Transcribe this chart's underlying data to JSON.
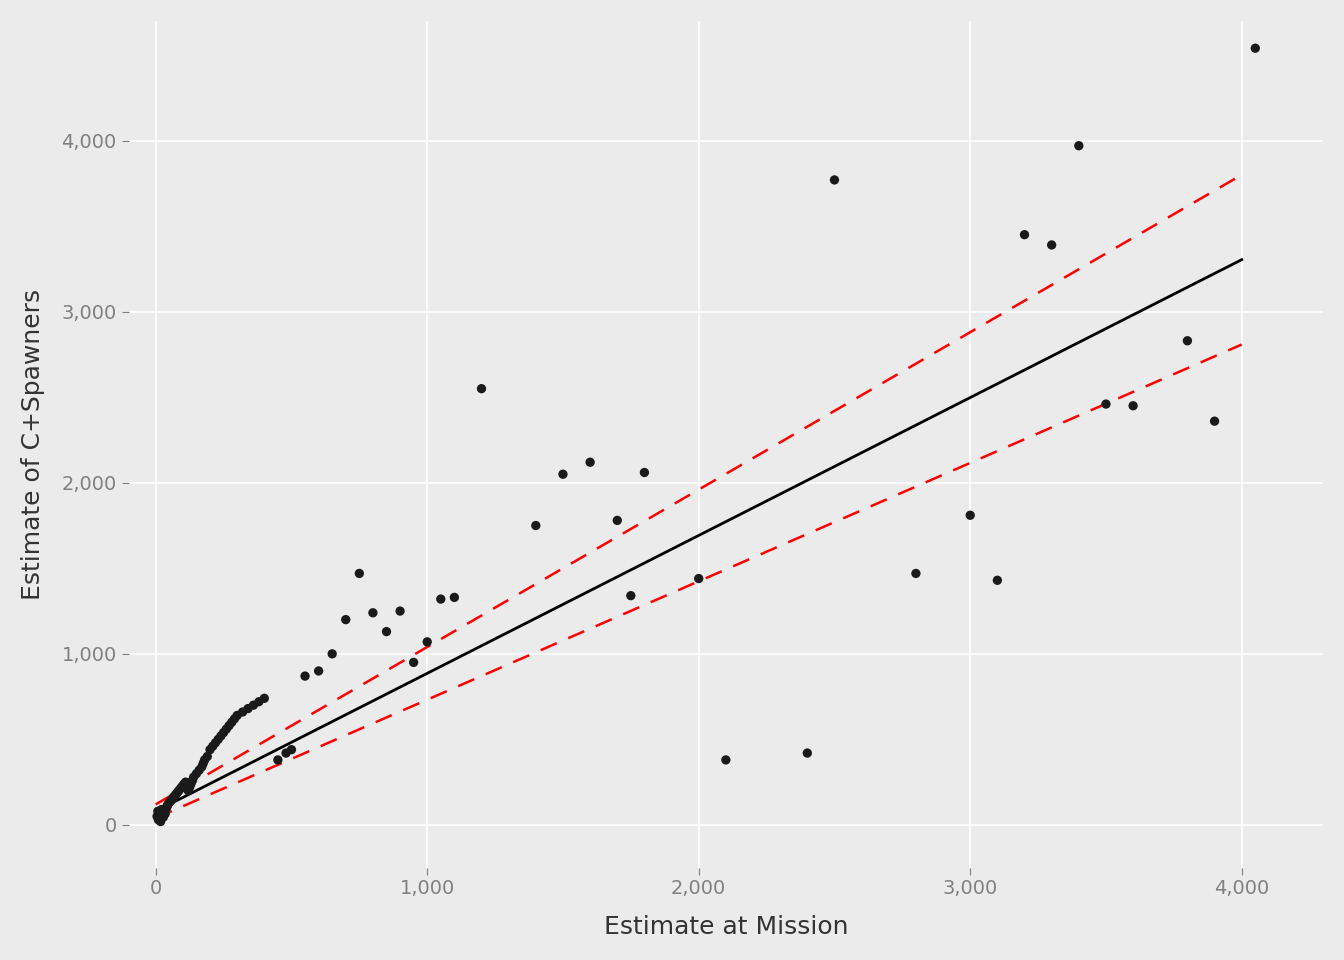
{
  "x_data": [
    5,
    8,
    10,
    12,
    15,
    18,
    20,
    22,
    25,
    28,
    30,
    35,
    40,
    42,
    45,
    50,
    55,
    60,
    65,
    70,
    75,
    80,
    85,
    90,
    95,
    100,
    105,
    110,
    120,
    125,
    130,
    135,
    140,
    150,
    160,
    170,
    175,
    180,
    190,
    200,
    210,
    220,
    230,
    240,
    250,
    260,
    270,
    280,
    290,
    300,
    320,
    340,
    360,
    380,
    400,
    450,
    480,
    500,
    550,
    600,
    650,
    700,
    750,
    800,
    850,
    900,
    950,
    1000,
    1050,
    1100,
    1200,
    1400,
    1500,
    1600,
    1700,
    1750,
    1800,
    2000,
    2100,
    2400,
    2500,
    2800,
    3000,
    3100,
    3200,
    3300,
    3400,
    3500,
    3600,
    3800,
    3900,
    4050
  ],
  "y_data": [
    50,
    80,
    30,
    60,
    40,
    20,
    70,
    90,
    55,
    45,
    85,
    65,
    100,
    110,
    120,
    130,
    140,
    150,
    160,
    170,
    180,
    190,
    200,
    210,
    220,
    230,
    240,
    250,
    200,
    220,
    240,
    260,
    280,
    300,
    320,
    340,
    360,
    380,
    400,
    440,
    460,
    480,
    500,
    520,
    540,
    560,
    580,
    600,
    620,
    640,
    660,
    680,
    700,
    720,
    740,
    380,
    420,
    440,
    870,
    900,
    1000,
    1200,
    1470,
    1240,
    1130,
    1250,
    950,
    1070,
    1320,
    1330,
    2550,
    1750,
    2050,
    2120,
    1780,
    1340,
    2060,
    1440,
    380,
    420,
    3770,
    1470,
    1810,
    1430,
    3450,
    3390,
    3970,
    2460,
    2450,
    2830,
    2360,
    4540
  ],
  "slope": 0.806,
  "intercept": 80,
  "ci_upper_slope": 0.92,
  "ci_upper_intercept": 120,
  "ci_lower_slope": 0.692,
  "ci_lower_intercept": 40,
  "xlabel": "Estimate at Mission",
  "ylabel": "Estimate of C+Spawners",
  "bg_color": "#EBEBEB",
  "grid_color": "#FFFFFF",
  "point_color": "#1A1A1A",
  "line_color": "#000000",
  "ci_color": "#FF0000",
  "xlim": [
    -100,
    4300
  ],
  "ylim": [
    -250,
    4700
  ],
  "xticks": [
    0,
    1000,
    2000,
    3000,
    4000
  ],
  "yticks": [
    0,
    1000,
    2000,
    3000,
    4000
  ],
  "xlabel_fontsize": 18,
  "ylabel_fontsize": 18,
  "tick_fontsize": 14,
  "tick_color": "#808080"
}
